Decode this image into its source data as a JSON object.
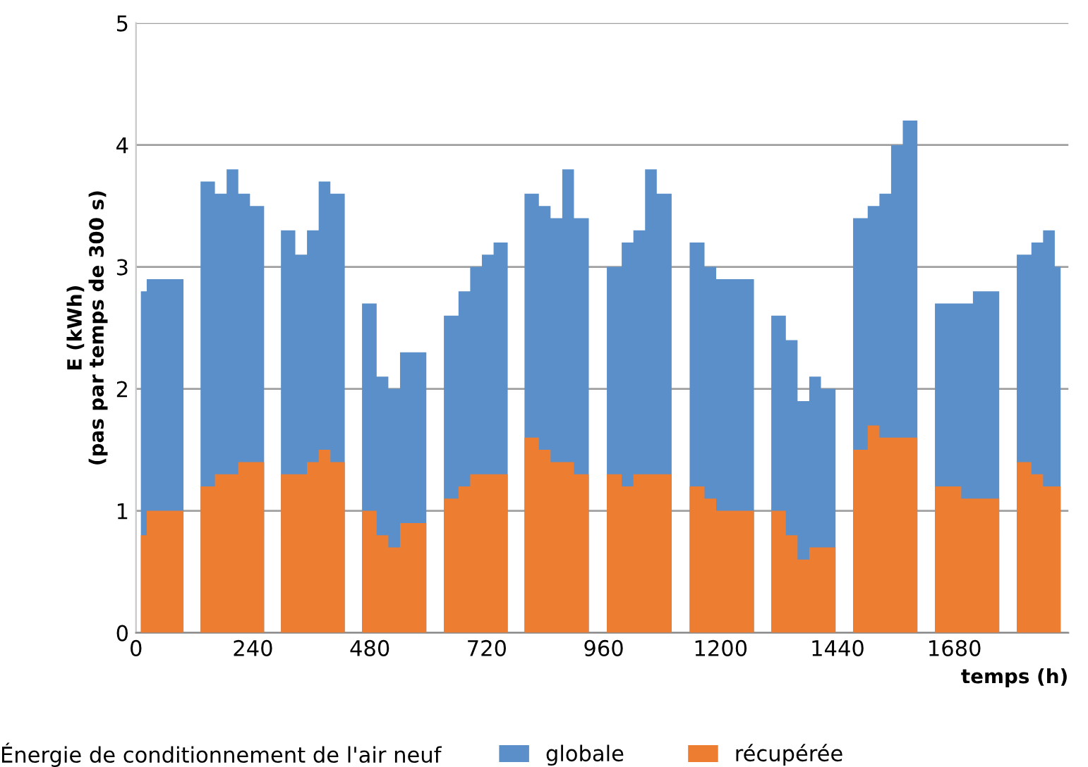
{
  "chart_data": {
    "type": "area",
    "ylabel": "E (kWh)\n(pas par temps de 300 s)",
    "xlabel": "temps (h)",
    "legend_title": "Énergie de conditionnement de l'air neuf",
    "x": [
      10,
      34,
      58,
      80,
      115,
      150,
      174,
      198,
      222,
      246,
      280,
      315,
      339,
      363,
      387,
      411,
      446,
      482,
      506,
      530,
      554,
      578,
      614,
      650,
      674,
      698,
      722,
      746,
      780,
      815,
      839,
      863,
      887,
      911,
      948,
      985,
      1009,
      1033,
      1057,
      1081,
      1118,
      1155,
      1179,
      1203,
      1227,
      1251,
      1286,
      1322,
      1346,
      1370,
      1394,
      1418,
      1454,
      1490,
      1514,
      1538,
      1562,
      1586,
      1622,
      1658,
      1682,
      1706,
      1730,
      1754,
      1790,
      1826,
      1850,
      1874,
      1898
    ],
    "series": [
      {
        "name": "globale",
        "color": "#5b8fc9",
        "values": [
          2.8,
          2.9,
          2.9,
          2.9,
          0,
          3.7,
          3.6,
          3.8,
          3.6,
          3.5,
          0,
          3.3,
          3.1,
          3.3,
          3.7,
          3.6,
          0,
          2.7,
          2.1,
          2.0,
          2.3,
          2.3,
          0,
          2.6,
          2.8,
          3.0,
          3.1,
          3.2,
          0,
          3.6,
          3.5,
          3.4,
          3.8,
          3.4,
          0,
          3.0,
          3.2,
          3.3,
          3.8,
          3.6,
          0,
          3.2,
          3.0,
          2.9,
          2.9,
          2.9,
          0,
          2.6,
          2.4,
          1.9,
          2.1,
          2.0,
          0,
          3.4,
          3.5,
          3.6,
          4.0,
          4.2,
          0,
          2.7,
          2.7,
          2.7,
          2.8,
          2.8,
          0,
          3.1,
          3.2,
          3.3,
          3.0
        ]
      },
      {
        "name": "récupérée",
        "color": "#ed7d31",
        "values": [
          0.8,
          1.0,
          1.0,
          1.0,
          0,
          1.2,
          1.3,
          1.3,
          1.4,
          1.4,
          0,
          1.3,
          1.3,
          1.4,
          1.5,
          1.4,
          0,
          1.0,
          0.8,
          0.7,
          0.9,
          0.9,
          0,
          1.1,
          1.2,
          1.3,
          1.3,
          1.3,
          0,
          1.6,
          1.5,
          1.4,
          1.4,
          1.3,
          0,
          1.3,
          1.2,
          1.3,
          1.3,
          1.3,
          0,
          1.2,
          1.1,
          1.0,
          1.0,
          1.0,
          0,
          1.0,
          0.8,
          0.6,
          0.7,
          0.7,
          0,
          1.5,
          1.7,
          1.6,
          1.6,
          1.6,
          0,
          1.2,
          1.2,
          1.1,
          1.1,
          1.1,
          0,
          1.4,
          1.3,
          1.2,
          1.2
        ]
      }
    ],
    "xlim": [
      0,
      1914
    ],
    "xticks": [
      0,
      240,
      480,
      720,
      960,
      1200,
      1440,
      1680
    ],
    "ylim": [
      0,
      5
    ],
    "yticks": [
      0,
      1,
      2,
      3,
      4,
      5
    ],
    "grid": "y",
    "legend": "bottom"
  }
}
